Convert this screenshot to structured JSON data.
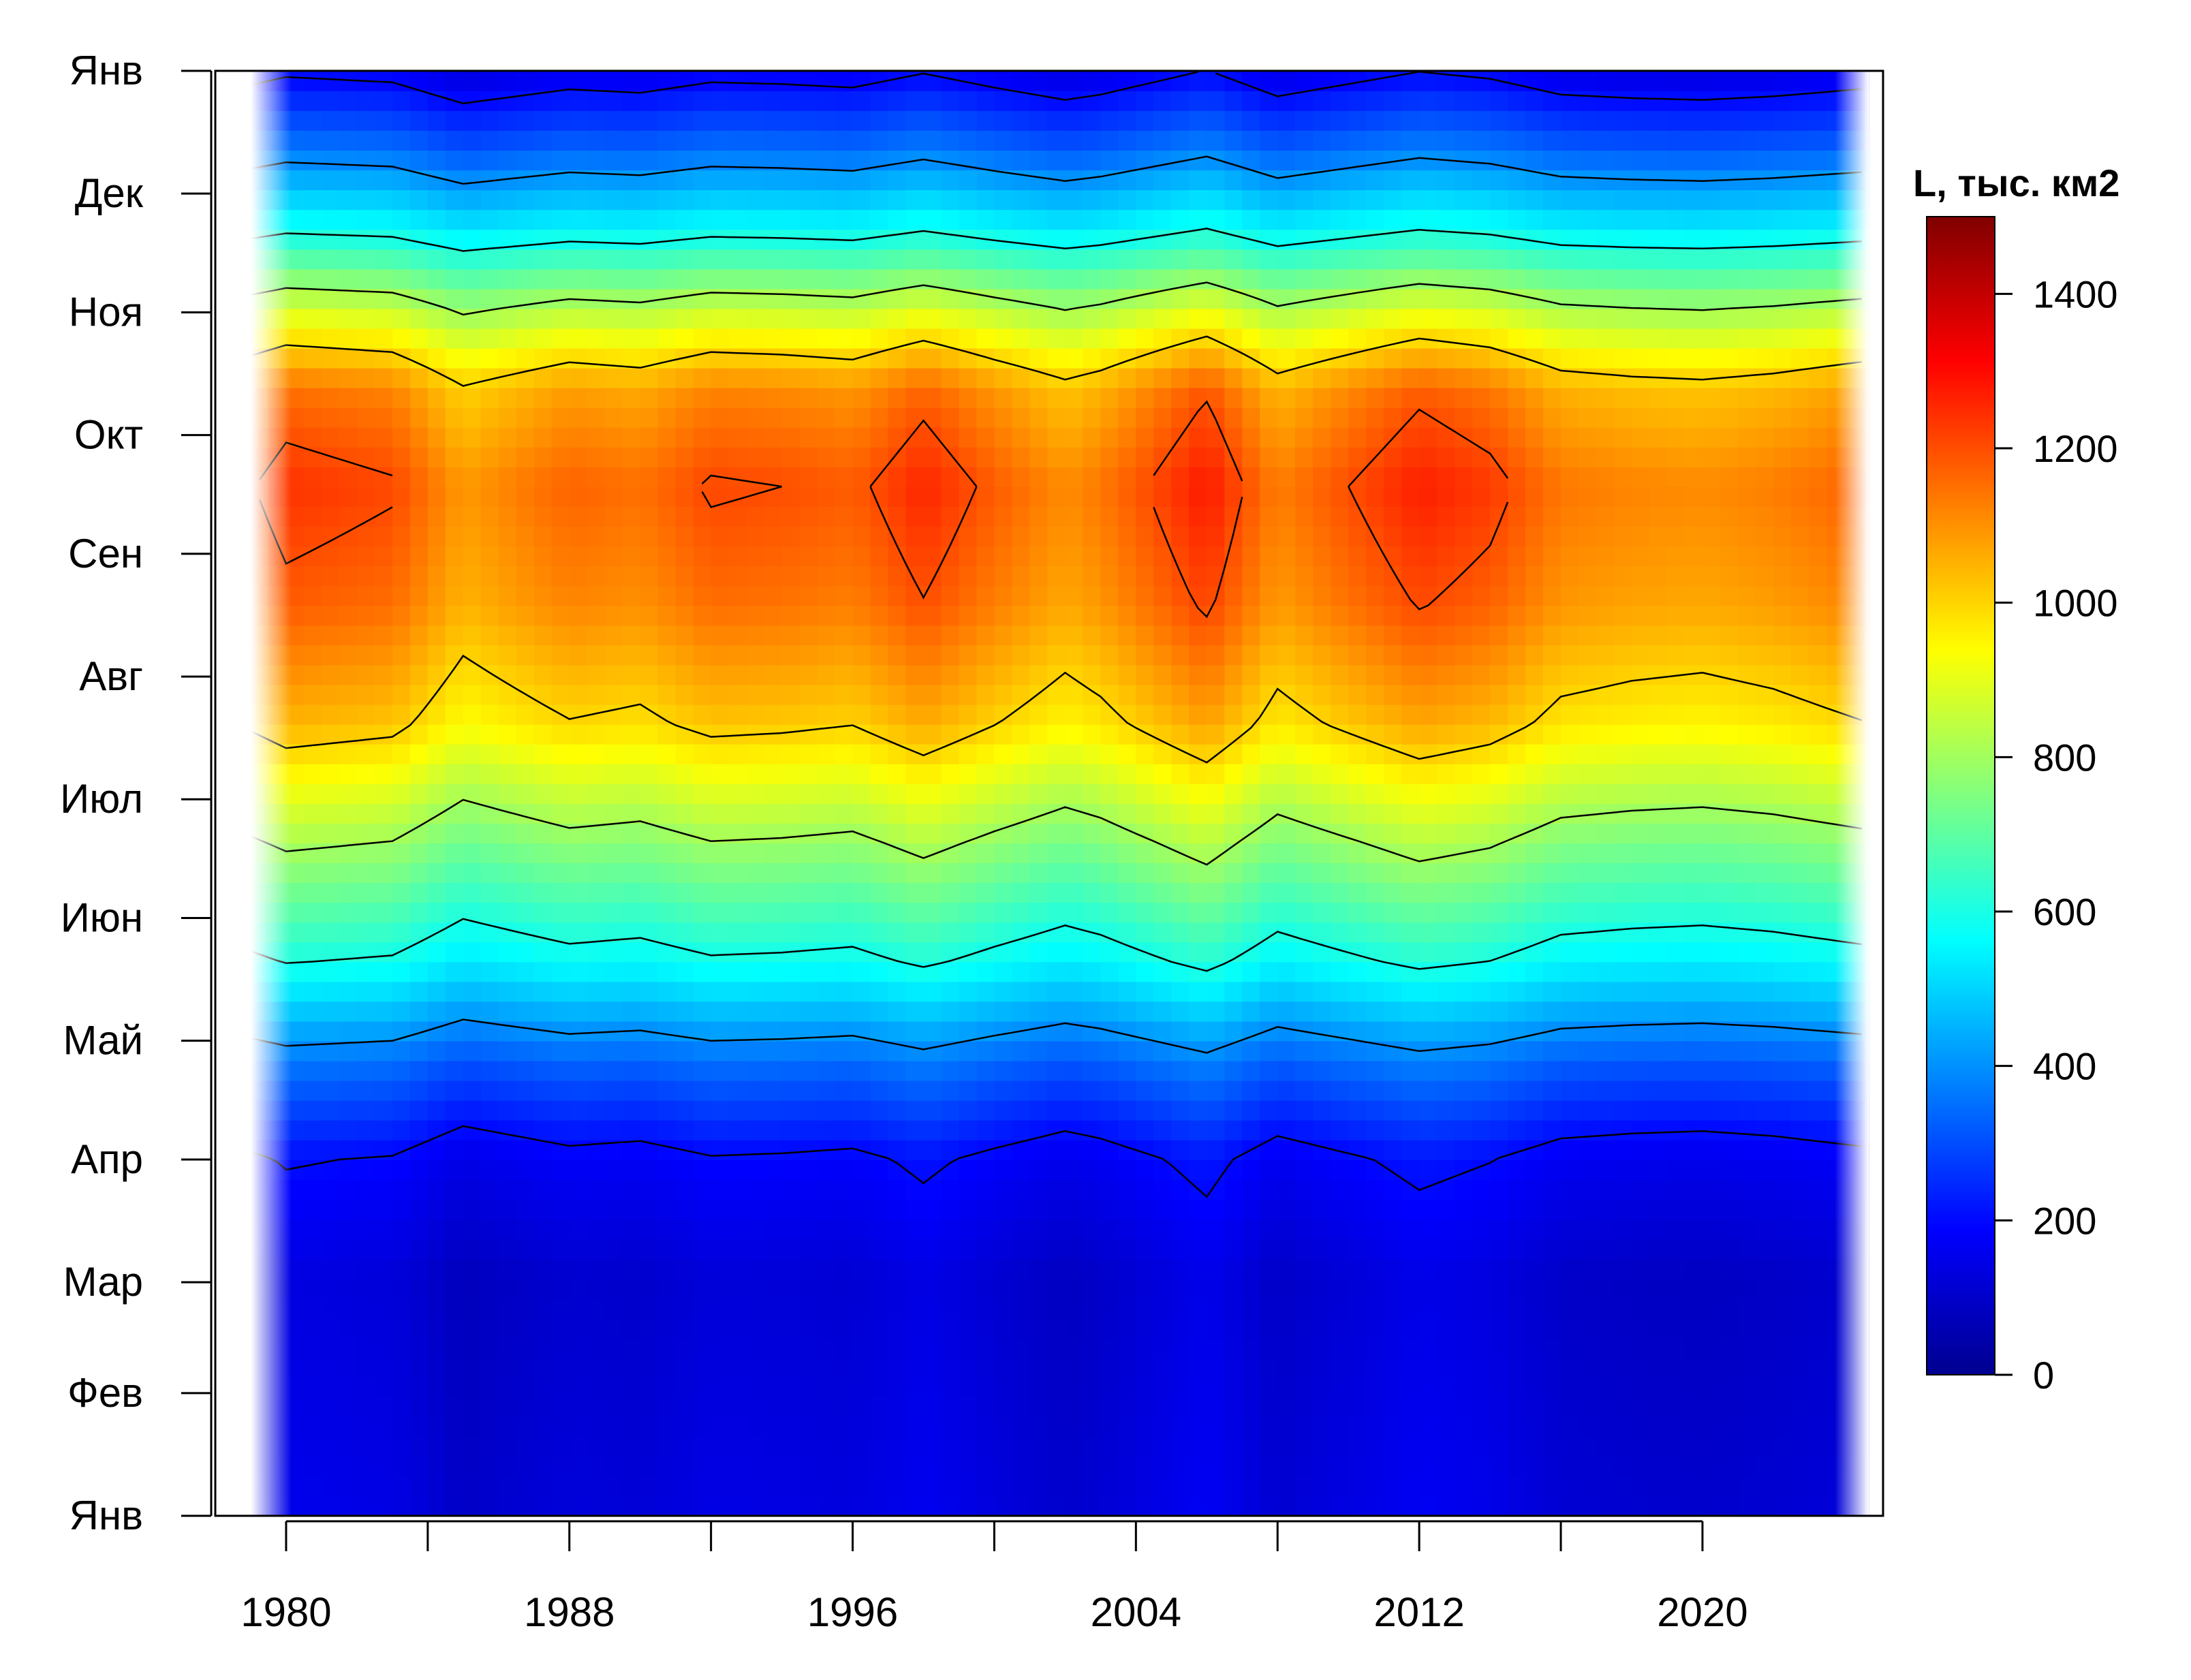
{
  "chart_data": {
    "type": "heatmap",
    "title": "",
    "xlabel": "",
    "ylabel": "",
    "x_range": [
      1978,
      2025.1
    ],
    "y_range_days": [
      0,
      365
    ],
    "x_ticks": [
      1980,
      1984,
      1988,
      1992,
      1996,
      2000,
      2004,
      2008,
      2012,
      2016,
      2020
    ],
    "x_tick_labels": [
      "1980",
      "1988",
      "1996",
      "2004",
      "2012",
      "2020"
    ],
    "y_ticks": [
      {
        "label": "Янв",
        "day": 0
      },
      {
        "label": "Фев",
        "day": 31
      },
      {
        "label": "Мар",
        "day": 59
      },
      {
        "label": "Апр",
        "day": 90
      },
      {
        "label": "Май",
        "day": 120
      },
      {
        "label": "Июн",
        "day": 151
      },
      {
        "label": "Июл",
        "day": 181
      },
      {
        "label": "Авг",
        "day": 212
      },
      {
        "label": "Сен",
        "day": 243
      },
      {
        "label": "Окт",
        "day": 273
      },
      {
        "label": "Ноя",
        "day": 304
      },
      {
        "label": "Дек",
        "day": 334
      },
      {
        "label": "Янв",
        "day": 365
      }
    ],
    "colorbar": {
      "title": "L, тыс. км2",
      "min": 0,
      "max": 1500,
      "ticks": [
        0,
        200,
        400,
        600,
        800,
        1000,
        1200,
        1400
      ],
      "colors": [
        "#00008F",
        "#0000FF",
        "#0080FF",
        "#00FFFF",
        "#80FF80",
        "#FFFF00",
        "#FF8000",
        "#FF0000",
        "#800000"
      ]
    },
    "contour_levels": [
      200,
      400,
      600,
      800,
      1000,
      1200
    ],
    "seasonal_profile": [
      {
        "day": 0,
        "value": 120
      },
      {
        "day": 60,
        "value": 100
      },
      {
        "day": 90,
        "value": 170
      },
      {
        "day": 115,
        "value": 330
      },
      {
        "day": 140,
        "value": 560
      },
      {
        "day": 170,
        "value": 760
      },
      {
        "day": 200,
        "value": 980
      },
      {
        "day": 230,
        "value": 1100
      },
      {
        "day": 260,
        "value": 1150
      },
      {
        "day": 285,
        "value": 1060
      },
      {
        "day": 305,
        "value": 820
      },
      {
        "day": 325,
        "value": 550
      },
      {
        "day": 345,
        "value": 330
      },
      {
        "day": 365,
        "value": 150
      }
    ],
    "year_anomalies": [
      {
        "year": 1978,
        "value": 0
      },
      {
        "year": 1980,
        "value": 90
      },
      {
        "year": 1983,
        "value": 60
      },
      {
        "year": 1985,
        "value": -60
      },
      {
        "year": 1988,
        "value": 20
      },
      {
        "year": 1990,
        "value": 0
      },
      {
        "year": 1992,
        "value": 60
      },
      {
        "year": 1994,
        "value": 50
      },
      {
        "year": 1996,
        "value": 30
      },
      {
        "year": 1998,
        "value": 110
      },
      {
        "year": 2000,
        "value": 30
      },
      {
        "year": 2002,
        "value": -40
      },
      {
        "year": 2003,
        "value": -10
      },
      {
        "year": 2006,
        "value": 130
      },
      {
        "year": 2008,
        "value": -20
      },
      {
        "year": 2010,
        "value": 50
      },
      {
        "year": 2012,
        "value": 120
      },
      {
        "year": 2014,
        "value": 80
      },
      {
        "year": 2016,
        "value": -10
      },
      {
        "year": 2018,
        "value": -30
      },
      {
        "year": 2020,
        "value": -40
      },
      {
        "year": 2022,
        "value": -20
      },
      {
        "year": 2025,
        "value": 30
      }
    ],
    "data_year_range": [
      1979,
      2024.7
    ]
  }
}
